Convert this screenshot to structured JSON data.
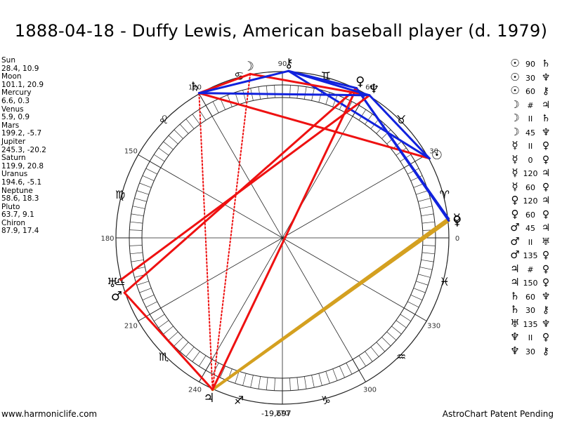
{
  "title": "1888-04-18 - Duffy Lewis, American baseball player (d. 1979)",
  "positions": [
    {
      "name": "Sun",
      "coords": "28.4, 10.9"
    },
    {
      "name": "Moon",
      "coords": "101.1, 20.9"
    },
    {
      "name": "Mercury",
      "coords": "6.6, 0.3"
    },
    {
      "name": "Venus",
      "coords": "5.9, 0.9"
    },
    {
      "name": "Mars",
      "coords": "199.2, -5.7"
    },
    {
      "name": "Jupiter",
      "coords": "245.3, -20.2"
    },
    {
      "name": "Saturn",
      "coords": "119.9, 20.8"
    },
    {
      "name": "Uranus",
      "coords": "194.6, -5.1"
    },
    {
      "name": "Neptune",
      "coords": "58.6, 18.3"
    },
    {
      "name": "Pluto",
      "coords": "63.7, 9.1"
    },
    {
      "name": "Chiron",
      "coords": "87.9, 17.4"
    }
  ],
  "aspects": [
    {
      "p1": "☉",
      "angle": "90",
      "p2": "♄"
    },
    {
      "p1": "☉",
      "angle": "30",
      "p2": "♆"
    },
    {
      "p1": "☉",
      "angle": "60",
      "p2": "⚷"
    },
    {
      "p1": "☽",
      "angle": "#",
      "p2": "♃"
    },
    {
      "p1": "☽",
      "angle": "II",
      "p2": "♄"
    },
    {
      "p1": "☽",
      "angle": "45",
      "p2": "♆"
    },
    {
      "p1": "☿",
      "angle": "II",
      "p2": "♀"
    },
    {
      "p1": "☿",
      "angle": "0",
      "p2": "♀"
    },
    {
      "p1": "☿",
      "angle": "120",
      "p2": "♃"
    },
    {
      "p1": "☿",
      "angle": "60",
      "p2": "♀"
    },
    {
      "p1": "♀",
      "angle": "120",
      "p2": "♃"
    },
    {
      "p1": "♀",
      "angle": "60",
      "p2": "♀"
    },
    {
      "p1": "♂",
      "angle": "45",
      "p2": "♃"
    },
    {
      "p1": "♂",
      "angle": "II",
      "p2": "♅"
    },
    {
      "p1": "♂",
      "angle": "135",
      "p2": "♀"
    },
    {
      "p1": "♃",
      "angle": "#",
      "p2": "♀"
    },
    {
      "p1": "♃",
      "angle": "150",
      "p2": "♀"
    },
    {
      "p1": "♄",
      "angle": "60",
      "p2": "♆"
    },
    {
      "p1": "♄",
      "angle": "30",
      "p2": "⚷"
    },
    {
      "p1": "♅",
      "angle": "135",
      "p2": "♆"
    },
    {
      "p1": "♆",
      "angle": "II",
      "p2": "♀"
    },
    {
      "p1": "♆",
      "angle": "30",
      "p2": "⚷"
    }
  ],
  "wheel": {
    "degree_labels": [
      "0",
      "30",
      "60",
      "90",
      "120",
      "150",
      "180",
      "210",
      "240",
      "270",
      "300",
      "330"
    ],
    "center_value": "-19,697",
    "colors": {
      "red": "#ee1111",
      "blue": "#1122dd",
      "gold": "#d4a020",
      "ring": "#222222"
    },
    "planets": [
      {
        "name": "Sun",
        "glyph": "☉",
        "lon": 28.4
      },
      {
        "name": "Moon",
        "glyph": "☽",
        "lon": 101.1
      },
      {
        "name": "Mercury",
        "glyph": "☿",
        "lon": 6.6
      },
      {
        "name": "Venus",
        "glyph": "♀",
        "lon": 5.9
      },
      {
        "name": "Mars",
        "glyph": "♂",
        "lon": 199.2
      },
      {
        "name": "Jupiter",
        "glyph": "♃",
        "lon": 245.3
      },
      {
        "name": "Saturn",
        "glyph": "♄",
        "lon": 119.9
      },
      {
        "name": "Uranus",
        "glyph": "♅",
        "lon": 194.6
      },
      {
        "name": "Neptune",
        "glyph": "♆",
        "lon": 58.6
      },
      {
        "name": "Pluto",
        "glyph": "♀",
        "lon": 63.7
      },
      {
        "name": "Chiron",
        "glyph": "⚷",
        "lon": 87.9
      }
    ],
    "signs": [
      "♈",
      "♉",
      "♊",
      "♋",
      "♌",
      "♍",
      "♎",
      "♏",
      "♐",
      "♑",
      "♒",
      "♓"
    ],
    "aspect_lines": [
      {
        "a": "Sun",
        "b": "Saturn",
        "color": "red"
      },
      {
        "a": "Sun",
        "b": "Neptune",
        "color": "blue"
      },
      {
        "a": "Sun",
        "b": "Chiron",
        "color": "blue"
      },
      {
        "a": "Moon",
        "b": "Jupiter",
        "color": "red",
        "style": "dotted"
      },
      {
        "a": "Moon",
        "b": "Saturn",
        "color": "red"
      },
      {
        "a": "Moon",
        "b": "Neptune",
        "color": "red"
      },
      {
        "a": "Mercury",
        "b": "Jupiter",
        "color": "gold"
      },
      {
        "a": "Mercury",
        "b": "Pluto",
        "color": "blue"
      },
      {
        "a": "Venus",
        "b": "Jupiter",
        "color": "gold"
      },
      {
        "a": "Venus",
        "b": "Pluto",
        "color": "blue"
      },
      {
        "a": "Mars",
        "b": "Jupiter",
        "color": "red"
      },
      {
        "a": "Mars",
        "b": "Pluto",
        "color": "red"
      },
      {
        "a": "Jupiter",
        "b": "Pluto",
        "color": "red"
      },
      {
        "a": "Jupiter",
        "b": "Saturn",
        "color": "red",
        "style": "dotted"
      },
      {
        "a": "Saturn",
        "b": "Neptune",
        "color": "blue"
      },
      {
        "a": "Saturn",
        "b": "Chiron",
        "color": "blue"
      },
      {
        "a": "Uranus",
        "b": "Neptune",
        "color": "red"
      },
      {
        "a": "Neptune",
        "b": "Chiron",
        "color": "blue"
      },
      {
        "a": "Pluto",
        "b": "Chiron",
        "color": "blue"
      }
    ]
  },
  "footer": {
    "left": "www.harmoniclife.com",
    "right": "AstroChart Patent Pending"
  }
}
